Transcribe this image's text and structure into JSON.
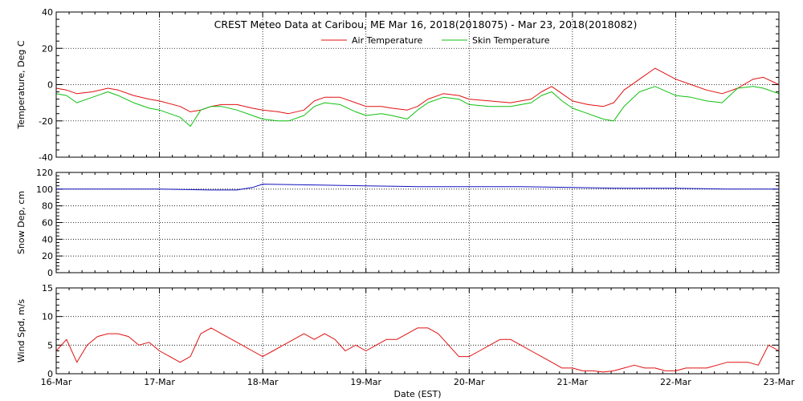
{
  "title": "CREST Meteo Data at Caribou, ME   Mar 16, 2018(2018075) - Mar 23, 2018(2018082)",
  "xlabel": "Date (EST)",
  "legend": [
    {
      "label": "Air Temperature",
      "color": "#e01010"
    },
    {
      "label": "Skin Temperature",
      "color": "#10c010"
    }
  ],
  "chart_data": [
    {
      "type": "line",
      "title": "CREST Meteo Data at Caribou, ME   Mar 16, 2018(2018075) - Mar 23, 2018(2018082)",
      "xlabel": "",
      "ylabel": "Temperature, Deg C",
      "ylim": [
        -40,
        40
      ],
      "yticks": [
        -40,
        -20,
        0,
        20,
        40
      ],
      "x_units": "days since 16-Mar",
      "xlim": [
        0,
        7
      ],
      "grid": true,
      "legend_position": "top-center",
      "series": [
        {
          "name": "Air Temperature",
          "color": "#e01010",
          "x": [
            0,
            0.1,
            0.2,
            0.35,
            0.5,
            0.6,
            0.75,
            0.9,
            1.0,
            1.2,
            1.3,
            1.4,
            1.5,
            1.6,
            1.75,
            1.9,
            2.0,
            2.15,
            2.25,
            2.4,
            2.5,
            2.6,
            2.75,
            2.9,
            3.0,
            3.15,
            3.25,
            3.4,
            3.5,
            3.6,
            3.75,
            3.9,
            4.0,
            4.2,
            4.4,
            4.6,
            4.7,
            4.8,
            4.9,
            5.0,
            5.15,
            5.3,
            5.4,
            5.5,
            5.65,
            5.8,
            6.0,
            6.15,
            6.3,
            6.45,
            6.6,
            6.75,
            6.85,
            7.0
          ],
          "y": [
            -2,
            -3,
            -5,
            -4,
            -2,
            -3,
            -6,
            -8,
            -9,
            -12,
            -15,
            -14,
            -12,
            -11,
            -11,
            -13,
            -14,
            -15,
            -16,
            -14,
            -9,
            -7,
            -7,
            -10,
            -12,
            -12,
            -13,
            -14,
            -12,
            -8,
            -5,
            -6,
            -8,
            -9,
            -10,
            -8,
            -4,
            -1,
            -5,
            -9,
            -11,
            -12,
            -10,
            -3,
            3,
            9,
            3,
            0,
            -3,
            -5,
            -2,
            3,
            4,
            0
          ]
        },
        {
          "name": "Skin Temperature",
          "color": "#10c010",
          "x": [
            0,
            0.1,
            0.2,
            0.35,
            0.5,
            0.6,
            0.75,
            0.9,
            1.0,
            1.2,
            1.3,
            1.4,
            1.5,
            1.6,
            1.75,
            1.9,
            2.0,
            2.15,
            2.25,
            2.4,
            2.5,
            2.6,
            2.75,
            2.9,
            3.0,
            3.15,
            3.25,
            3.4,
            3.5,
            3.6,
            3.75,
            3.9,
            4.0,
            4.2,
            4.4,
            4.6,
            4.7,
            4.8,
            4.9,
            5.0,
            5.15,
            5.3,
            5.4,
            5.5,
            5.65,
            5.8,
            6.0,
            6.15,
            6.3,
            6.45,
            6.6,
            6.75,
            6.85,
            7.0
          ],
          "y": [
            -5,
            -6,
            -10,
            -7,
            -4,
            -6,
            -10,
            -13,
            -14,
            -18,
            -23,
            -14,
            -12,
            -12,
            -14,
            -17,
            -19,
            -20,
            -20,
            -17,
            -12,
            -10,
            -11,
            -15,
            -17,
            -16,
            -17,
            -19,
            -14,
            -10,
            -7,
            -8,
            -11,
            -12,
            -12,
            -10,
            -6,
            -4,
            -9,
            -13,
            -16,
            -19,
            -20,
            -12,
            -4,
            -1,
            -6,
            -7,
            -9,
            -10,
            -2,
            -1,
            -2,
            -5
          ]
        }
      ]
    },
    {
      "type": "line",
      "ylabel": "Snow Dep, cm",
      "ylim": [
        0,
        120
      ],
      "yticks": [
        0,
        20,
        40,
        60,
        80,
        100,
        120
      ],
      "x_units": "days since 16-Mar",
      "xlim": [
        0,
        7
      ],
      "grid": true,
      "series": [
        {
          "name": "",
          "color": "#1010c0",
          "x": [
            0,
            0.5,
            1.0,
            1.5,
            1.75,
            1.9,
            2.0,
            2.5,
            3.0,
            3.5,
            4.0,
            4.5,
            5.0,
            5.5,
            6.0,
            6.5,
            7.0
          ],
          "y": [
            100,
            100,
            100,
            99,
            99,
            102,
            106,
            105,
            104,
            103,
            103,
            103,
            102,
            101,
            101,
            100,
            100
          ]
        }
      ]
    },
    {
      "type": "line",
      "ylabel": "Wind Spd, m/s",
      "xlabel": "Date (EST)",
      "ylim": [
        0,
        15
      ],
      "yticks": [
        0,
        5,
        10,
        15
      ],
      "x_units": "days since 16-Mar",
      "xlim": [
        0,
        7
      ],
      "xtick_labels": [
        "16-Mar",
        "17-Mar",
        "18-Mar",
        "19-Mar",
        "20-Mar",
        "21-Mar",
        "22-Mar",
        "23-Mar"
      ],
      "grid": true,
      "series": [
        {
          "name": "",
          "color": "#e01010",
          "x": [
            0,
            0.1,
            0.2,
            0.3,
            0.4,
            0.5,
            0.6,
            0.7,
            0.8,
            0.9,
            1.0,
            1.1,
            1.2,
            1.3,
            1.4,
            1.5,
            1.6,
            1.7,
            1.8,
            1.9,
            2.0,
            2.1,
            2.2,
            2.3,
            2.4,
            2.5,
            2.6,
            2.7,
            2.8,
            2.9,
            3.0,
            3.1,
            3.2,
            3.3,
            3.4,
            3.5,
            3.6,
            3.7,
            3.8,
            3.9,
            4.0,
            4.1,
            4.2,
            4.3,
            4.4,
            4.5,
            4.6,
            4.7,
            4.8,
            4.9,
            5.0,
            5.1,
            5.2,
            5.3,
            5.4,
            5.5,
            5.6,
            5.7,
            5.8,
            5.9,
            6.0,
            6.1,
            6.2,
            6.3,
            6.4,
            6.5,
            6.6,
            6.7,
            6.8,
            6.9,
            7.0
          ],
          "y": [
            4,
            6,
            2,
            5,
            6.5,
            7,
            7,
            6.5,
            5,
            5.5,
            4,
            3,
            2,
            3,
            7,
            8,
            7,
            6,
            5,
            4,
            3,
            4,
            5,
            6,
            7,
            6,
            7,
            6,
            4,
            5,
            4,
            5,
            6,
            6,
            7,
            8,
            8,
            7,
            5,
            3,
            3,
            4,
            5,
            6,
            6,
            5,
            4,
            3,
            2,
            1,
            1,
            0.5,
            0.5,
            0.3,
            0.5,
            1,
            1.5,
            1,
            1,
            0.5,
            0.5,
            1,
            1,
            1,
            1.5,
            2,
            2,
            2,
            1.5,
            5,
            4
          ]
        }
      ]
    }
  ]
}
